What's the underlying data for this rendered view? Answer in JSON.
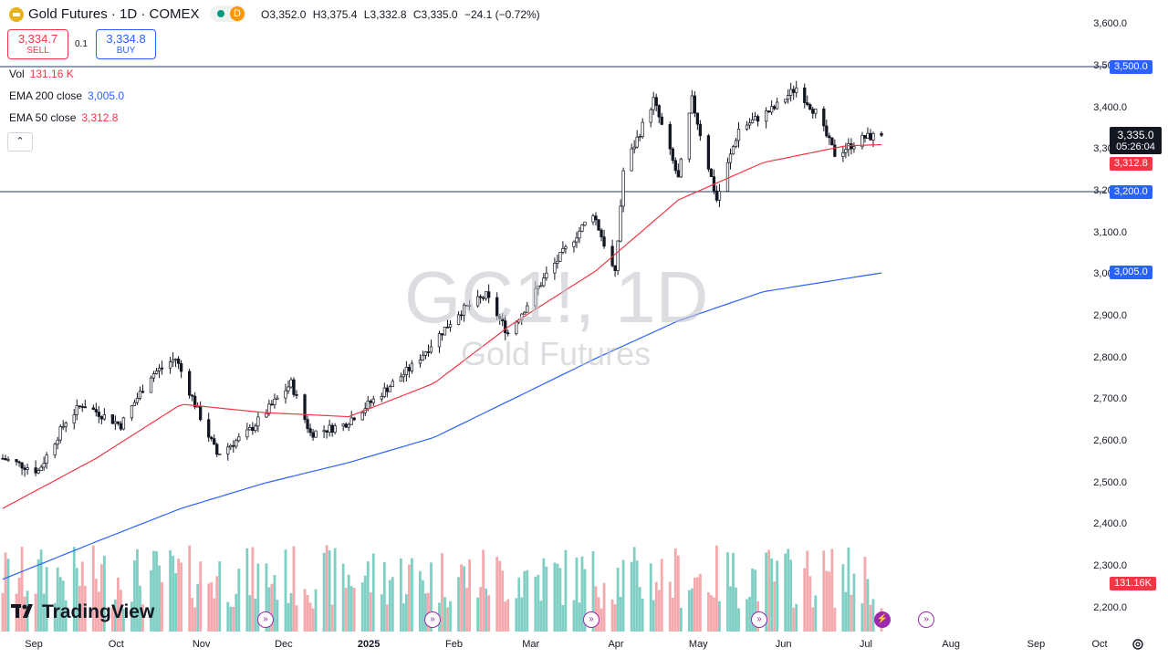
{
  "header": {
    "title": "Gold Futures · 1D · COMEX",
    "badge": "D",
    "ohlc": {
      "o_label": "O",
      "o": "3,352.0",
      "h_label": "H",
      "h": "3,375.4",
      "l_label": "L",
      "l": "3,332.8",
      "c_label": "C",
      "c": "3,335.0",
      "change": "−24.1 (−0.72%)"
    }
  },
  "trade": {
    "sell_price": "3,334.7",
    "sell_label": "SELL",
    "buy_price": "3,334.8",
    "buy_label": "BUY",
    "spread": "0.1"
  },
  "indicators": {
    "vol_label": "Vol",
    "vol_value": "131.16 K",
    "ema200_label": "EMA 200 close",
    "ema200_value": "3,005.0",
    "ema50_label": "EMA 50 close",
    "ema50_value": "3,312.8"
  },
  "watermark": {
    "symbol": "GC1!, 1D",
    "name": "Gold Futures"
  },
  "price_tag": {
    "price": "3,335.0",
    "countdown": "05:26:04"
  },
  "axis_tags": {
    "level_high": "3,500.0",
    "level_low": "3,200.0",
    "ema50": "3,312.8",
    "ema200": "3,005.0",
    "volume": "131.16K"
  },
  "brand": "TradingView",
  "colors": {
    "up": "#089981",
    "down": "#f23645",
    "ema50": "#f23645",
    "ema200": "#2962ff",
    "vol_up": "#7fcfc4",
    "vol_down": "#f5a9ad"
  },
  "chart_data": {
    "type": "candlestick",
    "title": "Gold Futures · 1D · COMEX",
    "y_ticks": [
      "3,600.0",
      "3,500.0",
      "3,400.0",
      "3,300.0",
      "3,200.0",
      "3,100.0",
      "3,000.0",
      "2,900.0",
      "2,800.0",
      "2,700.0",
      "2,600.0",
      "2,500.0",
      "2,400.0",
      "2,300.0",
      "2,200.0"
    ],
    "ylim": [
      2180,
      3625
    ],
    "x_ticks": [
      "Sep",
      "Oct",
      "Nov",
      "Dec",
      "2025",
      "Feb",
      "Mar",
      "Apr",
      "May",
      "Jun",
      "Jul",
      "Aug",
      "Sep",
      "Oct"
    ],
    "horizontal_lines": [
      3500,
      3200
    ],
    "last_close": 3335.0,
    "ema50_last": 3312.8,
    "ema200_last": 3005.0,
    "price_anchors": [
      {
        "date": "2024-08-28",
        "close": 2560
      },
      {
        "date": "2024-09-10",
        "close": 2530
      },
      {
        "date": "2024-09-20",
        "close": 2650
      },
      {
        "date": "2024-09-26",
        "close": 2690
      },
      {
        "date": "2024-10-10",
        "close": 2640
      },
      {
        "date": "2024-10-21",
        "close": 2760
      },
      {
        "date": "2024-10-30",
        "close": 2800
      },
      {
        "date": "2024-11-06",
        "close": 2690
      },
      {
        "date": "2024-11-14",
        "close": 2570
      },
      {
        "date": "2024-11-25",
        "close": 2620
      },
      {
        "date": "2024-12-11",
        "close": 2740
      },
      {
        "date": "2024-12-18",
        "close": 2620
      },
      {
        "date": "2024-12-30",
        "close": 2640
      },
      {
        "date": "2025-01-10",
        "close": 2700
      },
      {
        "date": "2025-01-24",
        "close": 2780
      },
      {
        "date": "2025-02-10",
        "close": 2910
      },
      {
        "date": "2025-02-20",
        "close": 2950
      },
      {
        "date": "2025-02-28",
        "close": 2860
      },
      {
        "date": "2025-03-14",
        "close": 3000
      },
      {
        "date": "2025-03-31",
        "close": 3150
      },
      {
        "date": "2025-04-08",
        "close": 3000
      },
      {
        "date": "2025-04-11",
        "close": 3250
      },
      {
        "date": "2025-04-22",
        "close": 3420
      },
      {
        "date": "2025-05-01",
        "close": 3230
      },
      {
        "date": "2025-05-06",
        "close": 3420
      },
      {
        "date": "2025-05-15",
        "close": 3180
      },
      {
        "date": "2025-05-23",
        "close": 3350
      },
      {
        "date": "2025-06-05",
        "close": 3400
      },
      {
        "date": "2025-06-13",
        "close": 3450
      },
      {
        "date": "2025-06-20",
        "close": 3390
      },
      {
        "date": "2025-06-27",
        "close": 3290
      },
      {
        "date": "2025-07-08",
        "close": 3330
      },
      {
        "date": "2025-07-14",
        "close": 3335
      }
    ],
    "ema50_anchors": [
      {
        "date": "2024-08-28",
        "value": 2440
      },
      {
        "date": "2024-10-01",
        "value": 2560
      },
      {
        "date": "2024-11-01",
        "value": 2690
      },
      {
        "date": "2024-12-01",
        "value": 2670
      },
      {
        "date": "2025-01-01",
        "value": 2660
      },
      {
        "date": "2025-02-01",
        "value": 2740
      },
      {
        "date": "2025-03-01",
        "value": 2880
      },
      {
        "date": "2025-04-01",
        "value": 3010
      },
      {
        "date": "2025-05-01",
        "value": 3180
      },
      {
        "date": "2025-06-01",
        "value": 3270
      },
      {
        "date": "2025-07-01",
        "value": 3310
      },
      {
        "date": "2025-07-14",
        "value": 3312.8
      }
    ],
    "ema200_anchors": [
      {
        "date": "2024-08-28",
        "value": 2270
      },
      {
        "date": "2024-10-01",
        "value": 2360
      },
      {
        "date": "2024-11-01",
        "value": 2440
      },
      {
        "date": "2024-12-01",
        "value": 2500
      },
      {
        "date": "2025-01-01",
        "value": 2550
      },
      {
        "date": "2025-02-01",
        "value": 2610
      },
      {
        "date": "2025-03-01",
        "value": 2700
      },
      {
        "date": "2025-04-01",
        "value": 2800
      },
      {
        "date": "2025-05-01",
        "value": 2890
      },
      {
        "date": "2025-06-01",
        "value": 2960
      },
      {
        "date": "2025-07-14",
        "value": 3005
      }
    ]
  }
}
